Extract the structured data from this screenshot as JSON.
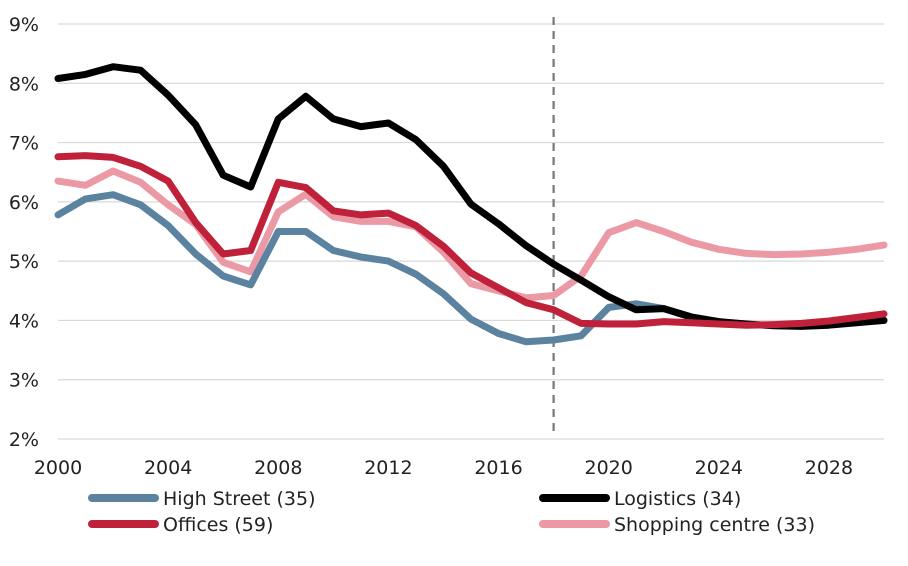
{
  "chart_data": {
    "type": "line",
    "title": "",
    "xlabel": "",
    "ylabel": "",
    "xlim": [
      2000,
      2030
    ],
    "ylim": [
      2,
      9
    ],
    "x_ticks": [
      "2000",
      "2004",
      "2008",
      "2012",
      "2016",
      "2020",
      "2024",
      "2028"
    ],
    "y_ticks": [
      "2%",
      "3%",
      "4%",
      "5%",
      "6%",
      "7%",
      "8%",
      "9%"
    ],
    "grid": "horizontal",
    "legend_position": "bottom",
    "forecast_divider_x": 2018,
    "x": [
      2000,
      2001,
      2002,
      2003,
      2004,
      2005,
      2006,
      2007,
      2008,
      2009,
      2010,
      2011,
      2012,
      2013,
      2014,
      2015,
      2016,
      2017,
      2018,
      2019,
      2020,
      2021,
      2022,
      2023,
      2024,
      2025,
      2026,
      2027,
      2028,
      2029,
      2030
    ],
    "series": [
      {
        "name": "High Street (35)",
        "color": "#5b83a0",
        "values": [
          5.78,
          6.05,
          6.12,
          5.95,
          5.6,
          5.12,
          4.75,
          4.6,
          5.5,
          5.5,
          5.18,
          5.07,
          5.0,
          4.78,
          4.45,
          4.02,
          3.78,
          3.64,
          3.67,
          3.74,
          4.22,
          4.28,
          4.2,
          4.05,
          3.97,
          3.93,
          3.92,
          3.92,
          3.94,
          3.97,
          4.0
        ]
      },
      {
        "name": "Logistics (34)",
        "color": "#000000",
        "values": [
          8.08,
          8.15,
          8.28,
          8.22,
          7.8,
          7.3,
          6.45,
          6.25,
          7.4,
          7.78,
          7.4,
          7.27,
          7.33,
          7.05,
          6.6,
          5.96,
          5.63,
          5.26,
          4.95,
          4.68,
          4.4,
          4.18,
          4.2,
          4.06,
          3.98,
          3.94,
          3.91,
          3.9,
          3.92,
          3.96,
          4.0
        ]
      },
      {
        "name": "Offices (59)",
        "color": "#c0213a",
        "values": [
          6.76,
          6.78,
          6.75,
          6.6,
          6.35,
          5.65,
          5.12,
          5.18,
          6.33,
          6.24,
          5.85,
          5.78,
          5.81,
          5.6,
          5.25,
          4.8,
          4.55,
          4.3,
          4.18,
          3.95,
          3.94,
          3.94,
          3.98,
          3.96,
          3.94,
          3.92,
          3.93,
          3.95,
          3.99,
          4.05,
          4.11
        ]
      },
      {
        "name": "Shopping centre (33)",
        "color": "#eb9aa5",
        "values": [
          6.35,
          6.28,
          6.52,
          6.33,
          5.95,
          5.62,
          4.98,
          4.82,
          5.83,
          6.13,
          5.75,
          5.67,
          5.67,
          5.58,
          5.15,
          4.62,
          4.5,
          4.38,
          4.42,
          4.75,
          5.48,
          5.65,
          5.5,
          5.32,
          5.2,
          5.13,
          5.11,
          5.12,
          5.15,
          5.2,
          5.27
        ]
      }
    ]
  }
}
